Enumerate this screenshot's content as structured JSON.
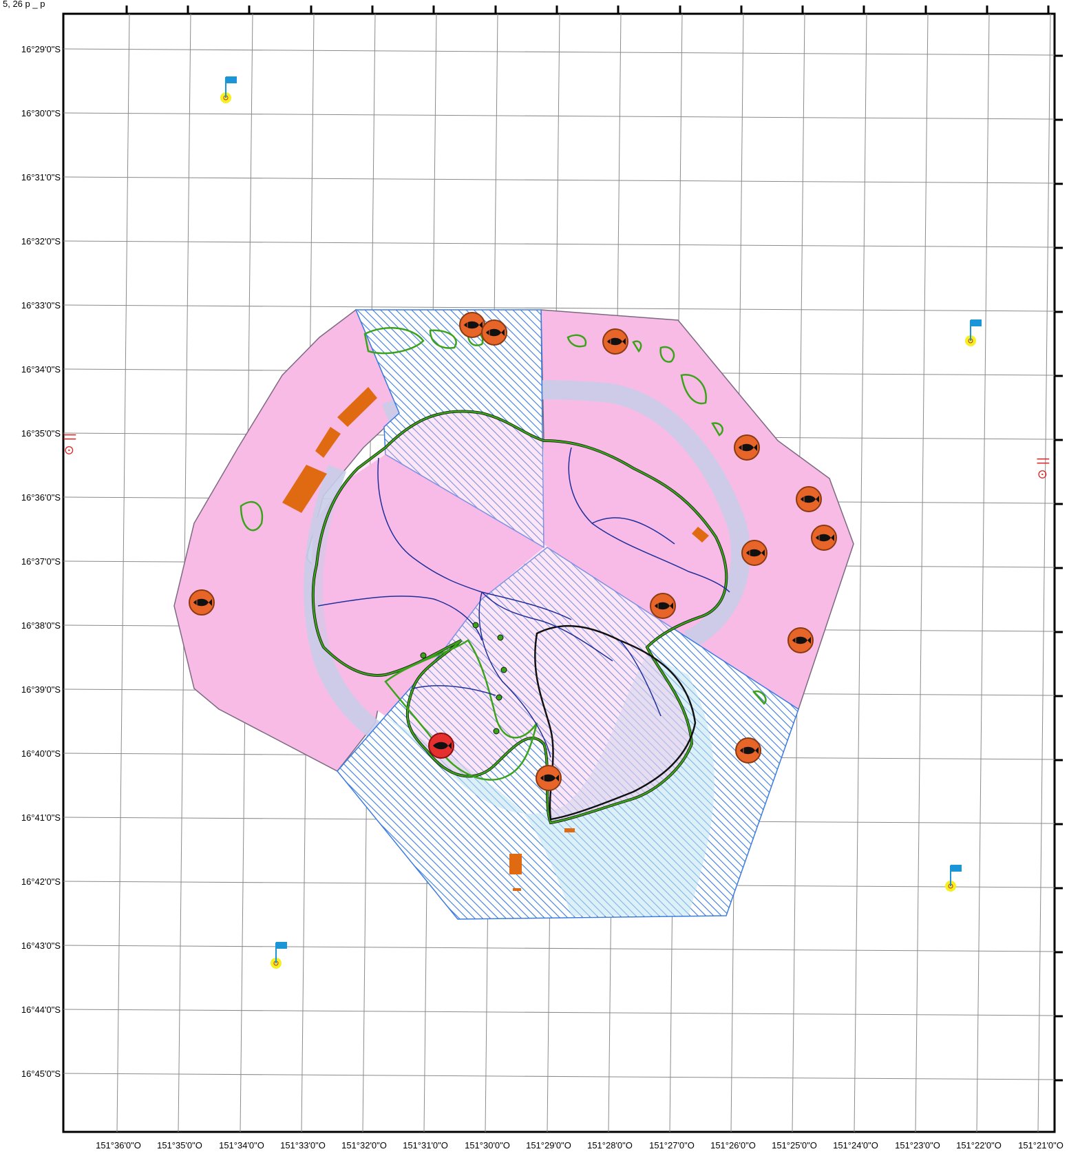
{
  "map": {
    "top_clipped_text": "5, 26 p _ p",
    "latitude_labels": [
      "16°29'0\"S",
      "16°30'0\"S",
      "16°31'0\"S",
      "16°32'0\"S",
      "16°33'0\"S",
      "16°34'0\"S",
      "16°35'0\"S",
      "16°36'0\"S",
      "16°37'0\"S",
      "16°38'0\"S",
      "16°39'0\"S",
      "16°40'0\"S",
      "16°41'0\"S",
      "16°42'0\"S",
      "16°43'0\"S",
      "16°44'0\"S",
      "16°45'0\"S"
    ],
    "longitude_labels": [
      "151°36'0\"O",
      "151°35'0\"O",
      "151°34'0\"O",
      "151°33'0\"O",
      "151°32'0\"O",
      "151°31'0\"O",
      "151°30'0\"O",
      "151°29'0\"O",
      "151°28'0\"O",
      "151°27'0\"O",
      "151°26'0\"O",
      "151°25'0\"O",
      "151°24'0\"O",
      "151°23'0\"O",
      "151°22'0\"O",
      "151°21'0\"O"
    ],
    "north_arrow_glyph": "⊙ ||",
    "colors": {
      "zone_pink": "#f8bbe6",
      "zone_hatch_blue": "#3a7be0",
      "lagoon_light_blue": "#bfe3f2",
      "reef_green": "#3aa31a",
      "coast_black": "#111111",
      "river_blue": "#1e2f9a",
      "fish_marker": "#e8652a",
      "fish_marker_highlight": "#e63030",
      "orange_feature": "#e06a12",
      "flag_blue": "#1a95d8",
      "flag_base_yellow": "#f5f020"
    },
    "icons": {
      "fish_marker": "fish-icon",
      "flag_marker": "flag-icon",
      "north_arrow": "north-arrow-icon"
    }
  }
}
